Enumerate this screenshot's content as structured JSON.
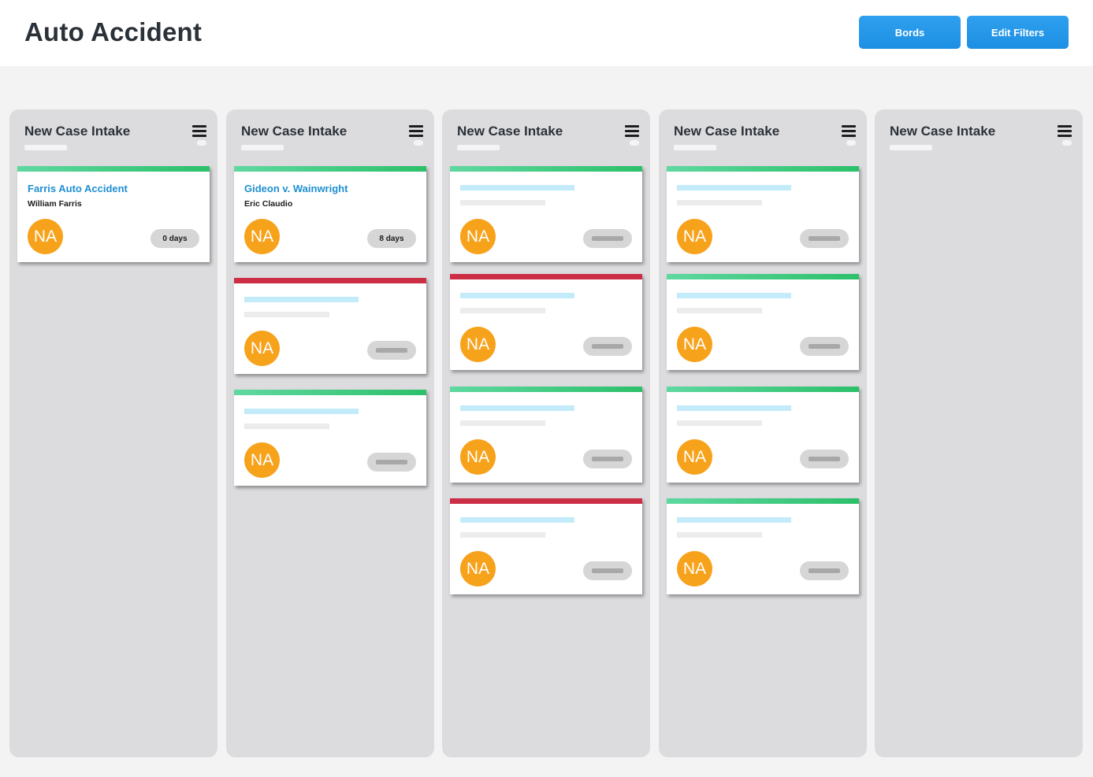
{
  "header": {
    "title": "Auto Accident",
    "boards_label": "Bords",
    "edit_filters_label": "Edit Filters"
  },
  "colors": {
    "accent": "#1d8fe3",
    "column_bg": "#dcdcdf",
    "status_green": "#2cc06a",
    "status_red": "#cc2e46",
    "avatar": "#f7a21b",
    "card_title": "#1f8fd2"
  },
  "columns": [
    {
      "title": "New Case Intake",
      "cards": [
        {
          "status": "green",
          "title": "Farris Auto Accident",
          "person": "William Farris",
          "avatar": "NA",
          "days": "0 days"
        }
      ]
    },
    {
      "title": "New Case Intake",
      "cards": [
        {
          "status": "green",
          "title": "Gideon v. Wainwright",
          "person": "Eric Claudio",
          "avatar": "NA",
          "days": "8 days"
        },
        {
          "status": "red",
          "avatar": "NA"
        },
        {
          "status": "green",
          "avatar": "NA"
        }
      ]
    },
    {
      "title": "New Case Intake",
      "cards": [
        {
          "status": "green",
          "avatar": "NA"
        },
        {
          "status": "red",
          "avatar": "NA"
        },
        {
          "status": "green",
          "avatar": "NA"
        },
        {
          "status": "red",
          "avatar": "NA"
        }
      ]
    },
    {
      "title": "New Case Intake",
      "cards": [
        {
          "status": "green",
          "avatar": "NA"
        },
        {
          "status": "green",
          "avatar": "NA"
        },
        {
          "status": "green",
          "avatar": "NA"
        },
        {
          "status": "green",
          "avatar": "NA"
        }
      ]
    },
    {
      "title": "New Case Intake",
      "cards": []
    }
  ]
}
